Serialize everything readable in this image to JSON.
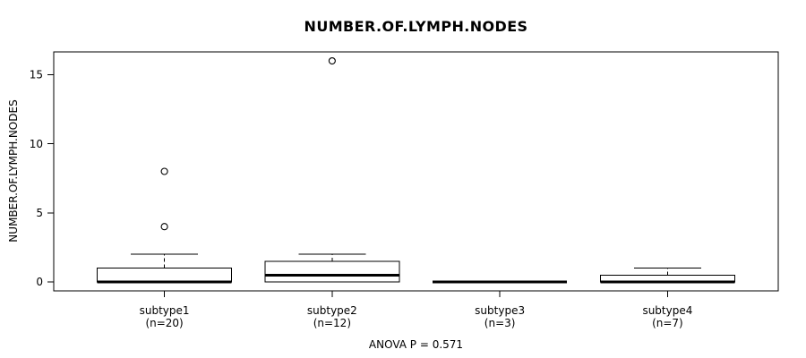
{
  "colors": {
    "foreground": "#000000",
    "background": "#ffffff"
  },
  "chart_data": {
    "type": "boxplot",
    "title": "NUMBER.OF.LYMPH.NODES",
    "ylabel": "NUMBER.OF.LYMPH.NODES",
    "annotation": "ANOVA P = 0.571",
    "grid": false,
    "legend": "none",
    "yticks": [
      0,
      5,
      10,
      15
    ],
    "ylim": [
      -0.65,
      16.65
    ],
    "groups": [
      {
        "label": "subtype1",
        "sublabel": "(n=20)",
        "n": 20,
        "whislo": 0,
        "q1": 0,
        "median": 0,
        "q3": 1,
        "whishi": 2,
        "outliers": [
          4,
          8
        ]
      },
      {
        "label": "subtype2",
        "sublabel": "(n=12)",
        "n": 12,
        "whislo": 0,
        "q1": 0,
        "median": 0.5,
        "q3": 1.5,
        "whishi": 2,
        "outliers": [
          16
        ]
      },
      {
        "label": "subtype3",
        "sublabel": "(n=3)",
        "n": 3,
        "whislo": 0,
        "q1": 0,
        "median": 0,
        "q3": 0,
        "whishi": 0,
        "outliers": []
      },
      {
        "label": "subtype4",
        "sublabel": "(n=7)",
        "n": 7,
        "whislo": 0,
        "q1": 0,
        "median": 0,
        "q3": 0.5,
        "whishi": 1,
        "outliers": []
      }
    ]
  }
}
